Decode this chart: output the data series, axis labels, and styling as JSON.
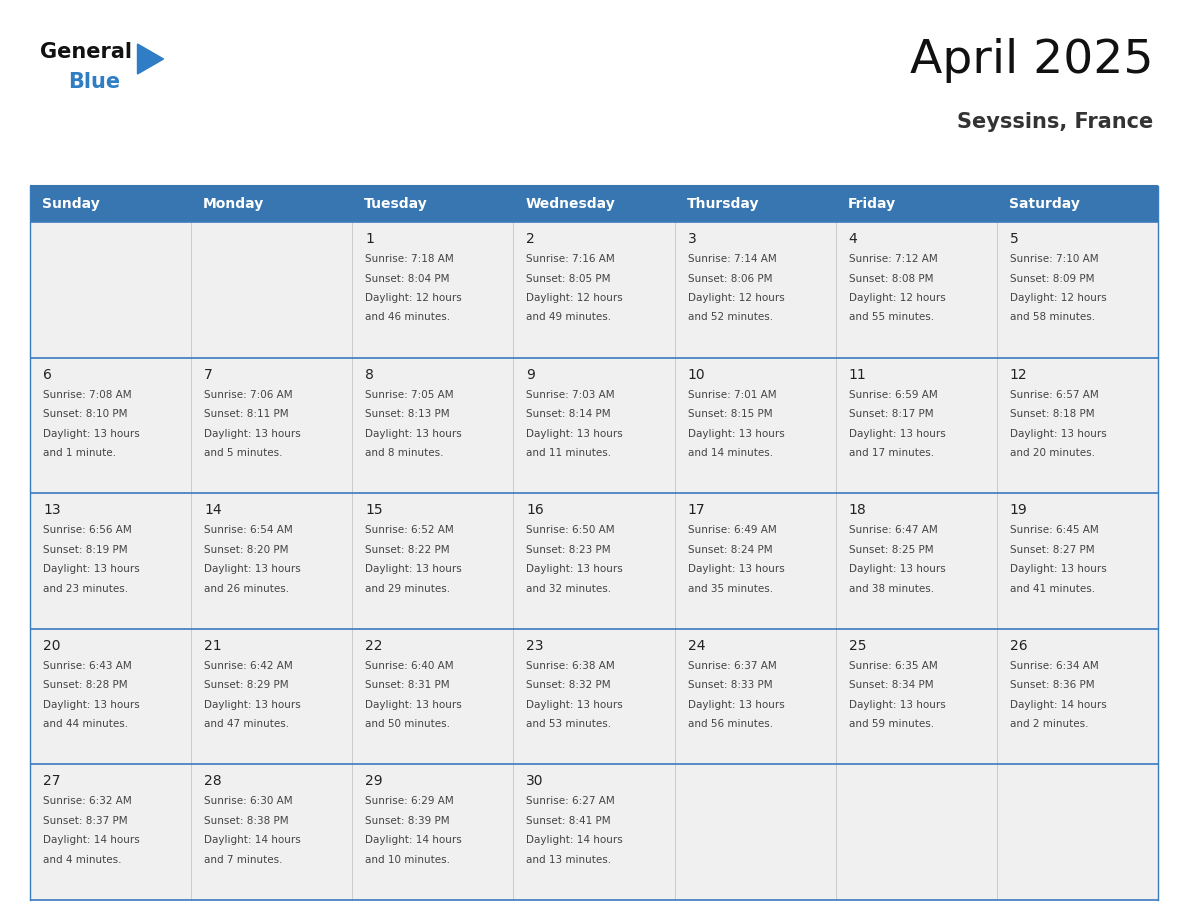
{
  "title": "April 2025",
  "subtitle": "Seyssins, France",
  "days_of_week": [
    "Sunday",
    "Monday",
    "Tuesday",
    "Wednesday",
    "Thursday",
    "Friday",
    "Saturday"
  ],
  "header_bg": "#3776B0",
  "header_text_color": "#FFFFFF",
  "cell_bg_light": "#F0F0F0",
  "border_color": "#3776B0",
  "row_sep_color": "#3a7abf",
  "text_color": "#444444",
  "day_num_color": "#222222",
  "logo_black_color": "#111111",
  "logo_blue_color": "#2e7dc5",
  "weeks": [
    [
      {
        "day": null,
        "info": null
      },
      {
        "day": null,
        "info": null
      },
      {
        "day": 1,
        "info": "Sunrise: 7:18 AM\nSunset: 8:04 PM\nDaylight: 12 hours\nand 46 minutes."
      },
      {
        "day": 2,
        "info": "Sunrise: 7:16 AM\nSunset: 8:05 PM\nDaylight: 12 hours\nand 49 minutes."
      },
      {
        "day": 3,
        "info": "Sunrise: 7:14 AM\nSunset: 8:06 PM\nDaylight: 12 hours\nand 52 minutes."
      },
      {
        "day": 4,
        "info": "Sunrise: 7:12 AM\nSunset: 8:08 PM\nDaylight: 12 hours\nand 55 minutes."
      },
      {
        "day": 5,
        "info": "Sunrise: 7:10 AM\nSunset: 8:09 PM\nDaylight: 12 hours\nand 58 minutes."
      }
    ],
    [
      {
        "day": 6,
        "info": "Sunrise: 7:08 AM\nSunset: 8:10 PM\nDaylight: 13 hours\nand 1 minute."
      },
      {
        "day": 7,
        "info": "Sunrise: 7:06 AM\nSunset: 8:11 PM\nDaylight: 13 hours\nand 5 minutes."
      },
      {
        "day": 8,
        "info": "Sunrise: 7:05 AM\nSunset: 8:13 PM\nDaylight: 13 hours\nand 8 minutes."
      },
      {
        "day": 9,
        "info": "Sunrise: 7:03 AM\nSunset: 8:14 PM\nDaylight: 13 hours\nand 11 minutes."
      },
      {
        "day": 10,
        "info": "Sunrise: 7:01 AM\nSunset: 8:15 PM\nDaylight: 13 hours\nand 14 minutes."
      },
      {
        "day": 11,
        "info": "Sunrise: 6:59 AM\nSunset: 8:17 PM\nDaylight: 13 hours\nand 17 minutes."
      },
      {
        "day": 12,
        "info": "Sunrise: 6:57 AM\nSunset: 8:18 PM\nDaylight: 13 hours\nand 20 minutes."
      }
    ],
    [
      {
        "day": 13,
        "info": "Sunrise: 6:56 AM\nSunset: 8:19 PM\nDaylight: 13 hours\nand 23 minutes."
      },
      {
        "day": 14,
        "info": "Sunrise: 6:54 AM\nSunset: 8:20 PM\nDaylight: 13 hours\nand 26 minutes."
      },
      {
        "day": 15,
        "info": "Sunrise: 6:52 AM\nSunset: 8:22 PM\nDaylight: 13 hours\nand 29 minutes."
      },
      {
        "day": 16,
        "info": "Sunrise: 6:50 AM\nSunset: 8:23 PM\nDaylight: 13 hours\nand 32 minutes."
      },
      {
        "day": 17,
        "info": "Sunrise: 6:49 AM\nSunset: 8:24 PM\nDaylight: 13 hours\nand 35 minutes."
      },
      {
        "day": 18,
        "info": "Sunrise: 6:47 AM\nSunset: 8:25 PM\nDaylight: 13 hours\nand 38 minutes."
      },
      {
        "day": 19,
        "info": "Sunrise: 6:45 AM\nSunset: 8:27 PM\nDaylight: 13 hours\nand 41 minutes."
      }
    ],
    [
      {
        "day": 20,
        "info": "Sunrise: 6:43 AM\nSunset: 8:28 PM\nDaylight: 13 hours\nand 44 minutes."
      },
      {
        "day": 21,
        "info": "Sunrise: 6:42 AM\nSunset: 8:29 PM\nDaylight: 13 hours\nand 47 minutes."
      },
      {
        "day": 22,
        "info": "Sunrise: 6:40 AM\nSunset: 8:31 PM\nDaylight: 13 hours\nand 50 minutes."
      },
      {
        "day": 23,
        "info": "Sunrise: 6:38 AM\nSunset: 8:32 PM\nDaylight: 13 hours\nand 53 minutes."
      },
      {
        "day": 24,
        "info": "Sunrise: 6:37 AM\nSunset: 8:33 PM\nDaylight: 13 hours\nand 56 minutes."
      },
      {
        "day": 25,
        "info": "Sunrise: 6:35 AM\nSunset: 8:34 PM\nDaylight: 13 hours\nand 59 minutes."
      },
      {
        "day": 26,
        "info": "Sunrise: 6:34 AM\nSunset: 8:36 PM\nDaylight: 14 hours\nand 2 minutes."
      }
    ],
    [
      {
        "day": 27,
        "info": "Sunrise: 6:32 AM\nSunset: 8:37 PM\nDaylight: 14 hours\nand 4 minutes."
      },
      {
        "day": 28,
        "info": "Sunrise: 6:30 AM\nSunset: 8:38 PM\nDaylight: 14 hours\nand 7 minutes."
      },
      {
        "day": 29,
        "info": "Sunrise: 6:29 AM\nSunset: 8:39 PM\nDaylight: 14 hours\nand 10 minutes."
      },
      {
        "day": 30,
        "info": "Sunrise: 6:27 AM\nSunset: 8:41 PM\nDaylight: 14 hours\nand 13 minutes."
      },
      {
        "day": null,
        "info": null
      },
      {
        "day": null,
        "info": null
      },
      {
        "day": null,
        "info": null
      }
    ]
  ]
}
